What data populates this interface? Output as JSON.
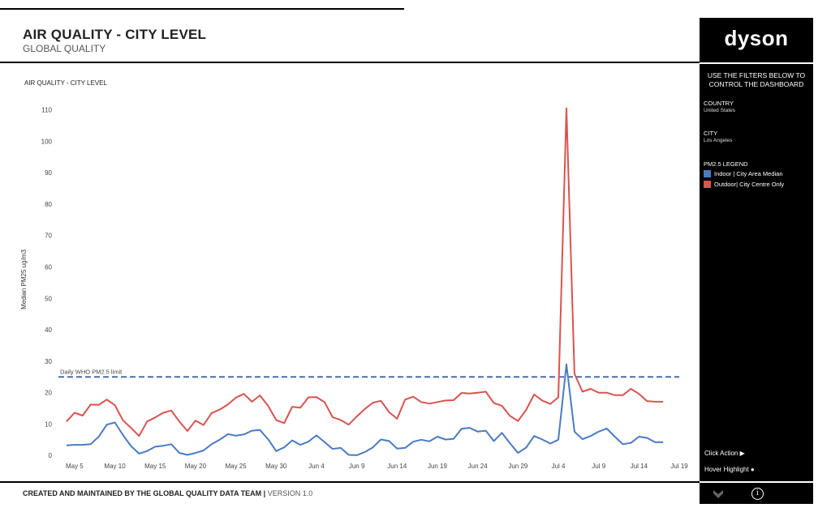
{
  "header": {
    "title": "AIR QUALITY - CITY LEVEL",
    "subtitle": "GLOBAL QUALITY"
  },
  "footer": {
    "created_by": "CREATED AND MAINTAINED BY THE GLOBAL QUALITY DATA TEAM",
    "separator": " | ",
    "version": "VERSION 1.0"
  },
  "side_panel": {
    "logo": "dyson",
    "filters_heading_line1": "USE THE FILTERS BELOW TO",
    "filters_heading_line2": "CONTROL THE DASHBOARD",
    "country_label": "COUNTRY",
    "country_value": "United States",
    "city_label": "CITY",
    "city_value": "Los Angeles",
    "legend_label": "PM2.5 LEGEND",
    "legend_items": [
      {
        "label": "Indoor | City Area Median",
        "color": "#4a7bc2"
      },
      {
        "label": "Outdoor| City Centre Only",
        "color": "#d9534f"
      }
    ],
    "click_action": "Click Action ▶",
    "hover_highlight": "Hover Highlight ●",
    "icons": [
      "home-icon",
      "info-icon"
    ]
  },
  "chart_data": {
    "type": "line",
    "title": "AIR QUALITY - CITY LEVEL",
    "ylabel": "Median PM25 ug/m3",
    "xlabel": "",
    "ylim": [
      -2,
      114
    ],
    "yticks": [
      0,
      10,
      20,
      30,
      40,
      50,
      60,
      70,
      80,
      90,
      100,
      110
    ],
    "x_start_date": "2019-05-03",
    "x_end_date": "2019-07-20",
    "x_tick_labels": [
      "May 5",
      "May 10",
      "May 15",
      "May 20",
      "May 25",
      "May 30",
      "Jun 4",
      "Jun 9",
      "Jun 14",
      "Jun 19",
      "Jun 24",
      "Jun 29",
      "Jul 4",
      "Jul 9",
      "Jul 14",
      "Jul 19"
    ],
    "x_tick_dates": [
      "2019-05-05",
      "2019-05-10",
      "2019-05-15",
      "2019-05-20",
      "2019-05-25",
      "2019-05-30",
      "2019-06-04",
      "2019-06-09",
      "2019-06-14",
      "2019-06-19",
      "2019-06-24",
      "2019-06-29",
      "2019-07-04",
      "2019-07-09",
      "2019-07-14",
      "2019-07-19"
    ],
    "grid": false,
    "reference_line": {
      "value": 25,
      "label": "Daily WHO PM2.5 limit",
      "color": "#4a6fa5"
    },
    "dates": [
      "2019-05-04",
      "2019-05-05",
      "2019-05-06",
      "2019-05-07",
      "2019-05-08",
      "2019-05-09",
      "2019-05-10",
      "2019-05-11",
      "2019-05-12",
      "2019-05-13",
      "2019-05-14",
      "2019-05-15",
      "2019-05-16",
      "2019-05-17",
      "2019-05-18",
      "2019-05-19",
      "2019-05-20",
      "2019-05-21",
      "2019-05-22",
      "2019-05-23",
      "2019-05-24",
      "2019-05-25",
      "2019-05-26",
      "2019-05-27",
      "2019-05-28",
      "2019-05-29",
      "2019-05-30",
      "2019-05-31",
      "2019-06-01",
      "2019-06-02",
      "2019-06-03",
      "2019-06-04",
      "2019-06-05",
      "2019-06-06",
      "2019-06-07",
      "2019-06-08",
      "2019-06-09",
      "2019-06-10",
      "2019-06-11",
      "2019-06-12",
      "2019-06-13",
      "2019-06-14",
      "2019-06-15",
      "2019-06-16",
      "2019-06-17",
      "2019-06-18",
      "2019-06-19",
      "2019-06-20",
      "2019-06-21",
      "2019-06-22",
      "2019-06-23",
      "2019-06-24",
      "2019-06-25",
      "2019-06-26",
      "2019-06-27",
      "2019-06-28",
      "2019-06-29",
      "2019-06-30",
      "2019-07-01",
      "2019-07-02",
      "2019-07-03",
      "2019-07-04",
      "2019-07-05",
      "2019-07-06",
      "2019-07-07",
      "2019-07-08",
      "2019-07-09",
      "2019-07-10",
      "2019-07-11",
      "2019-07-12",
      "2019-07-13",
      "2019-07-14",
      "2019-07-15",
      "2019-07-16",
      "2019-07-17"
    ],
    "series": [
      {
        "name": "Indoor | City Area Median",
        "color": "#4a7bc2",
        "values": [
          3.2,
          3.4,
          3.4,
          3.6,
          6.0,
          9.8,
          10.5,
          6.5,
          3.0,
          0.6,
          1.4,
          2.8,
          3.1,
          3.6,
          0.8,
          0.2,
          0.8,
          1.6,
          3.6,
          5.0,
          6.8,
          6.3,
          6.7,
          7.9,
          8.1,
          5.2,
          1.4,
          2.6,
          4.8,
          3.4,
          4.4,
          6.4,
          4.3,
          2.1,
          2.4,
          0.2,
          0.1,
          1.1,
          2.6,
          5.1,
          4.6,
          2.2,
          2.4,
          4.4,
          5.0,
          4.5,
          6.0,
          5.1,
          5.3,
          8.5,
          8.8,
          7.6,
          7.9,
          4.6,
          7.2,
          3.9,
          0.8,
          2.5,
          6.2,
          5.1,
          3.8,
          5.0,
          29.0,
          7.6,
          5.2,
          6.2,
          7.6,
          8.6,
          6.0,
          3.6,
          4.0,
          6.0,
          5.6,
          4.2,
          4.2
        ]
      },
      {
        "name": "Outdoor| City Centre Only",
        "color": "#d9534f",
        "values": [
          10.8,
          13.6,
          12.7,
          16.2,
          16.1,
          17.8,
          16.0,
          11.2,
          8.8,
          6.2,
          10.8,
          12.1,
          13.6,
          14.3,
          10.8,
          7.8,
          11.1,
          9.7,
          13.5,
          14.6,
          16.2,
          18.4,
          19.6,
          17.1,
          19.1,
          15.8,
          11.3,
          10.3,
          15.5,
          15.2,
          18.5,
          18.6,
          17.0,
          12.2,
          11.3,
          9.8,
          12.4,
          14.8,
          16.8,
          17.4,
          13.8,
          11.7,
          17.8,
          18.7,
          17.0,
          16.5,
          17.0,
          17.5,
          17.6,
          19.9,
          19.7,
          20.0,
          20.3,
          16.7,
          15.8,
          12.6,
          11.0,
          14.5,
          19.4,
          17.5,
          16.4,
          18.5,
          110.5,
          26.0,
          20.3,
          21.2,
          20.0,
          20.0,
          19.2,
          19.2,
          21.2,
          19.6,
          17.3,
          17.1,
          17.1
        ]
      }
    ]
  }
}
